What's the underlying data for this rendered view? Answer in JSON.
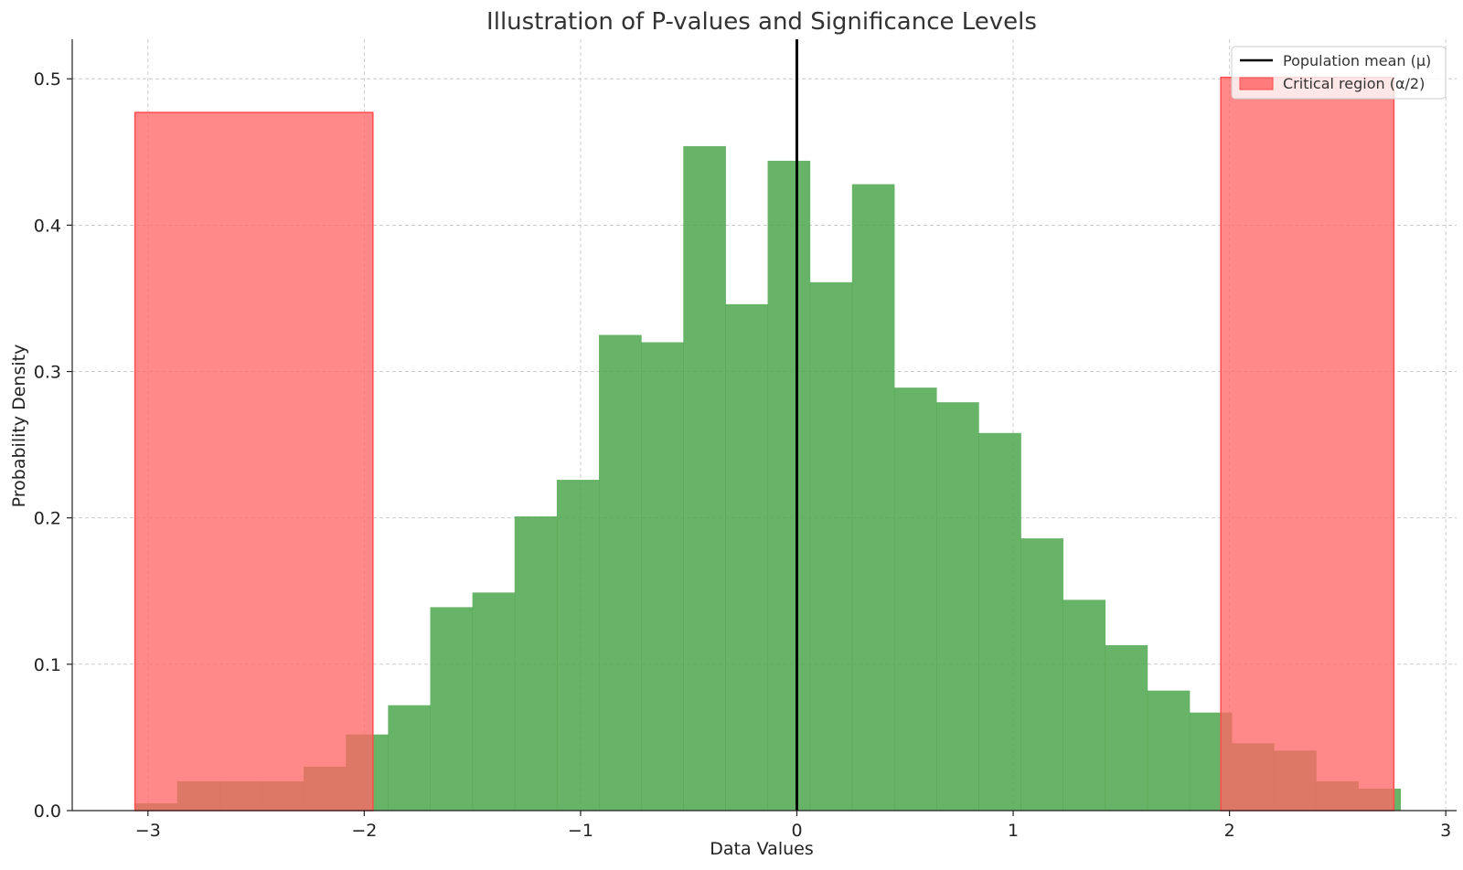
{
  "chart_data": {
    "type": "bar",
    "title": "Illustration of P-values and Significance Levels",
    "xlabel": "Data Values",
    "ylabel": "Probability Density",
    "xlim": [
      -3.35,
      3.05
    ],
    "ylim": [
      0,
      0.527
    ],
    "xticks": [
      -3,
      -2,
      -1,
      0,
      1,
      2,
      3
    ],
    "xtick_labels": [
      "−3",
      "−2",
      "−1",
      "0",
      "1",
      "2",
      "3"
    ],
    "yticks": [
      0.0,
      0.1,
      0.2,
      0.3,
      0.4,
      0.5
    ],
    "ytick_labels": [
      "0.0",
      "0.1",
      "0.2",
      "0.3",
      "0.4",
      "0.5"
    ],
    "grid": true,
    "legend_position": "top-right",
    "histogram": {
      "color": "#4ca64c",
      "opacity": 0.85,
      "bins": [
        {
          "x0": -3.06,
          "x1": -2.865,
          "value": 0.005
        },
        {
          "x0": -2.865,
          "x1": -2.67,
          "value": 0.02
        },
        {
          "x0": -2.67,
          "x1": -2.475,
          "value": 0.02
        },
        {
          "x0": -2.475,
          "x1": -2.28,
          "value": 0.02
        },
        {
          "x0": -2.28,
          "x1": -2.085,
          "value": 0.03
        },
        {
          "x0": -2.085,
          "x1": -1.89,
          "value": 0.052
        },
        {
          "x0": -1.89,
          "x1": -1.695,
          "value": 0.072
        },
        {
          "x0": -1.695,
          "x1": -1.5,
          "value": 0.139
        },
        {
          "x0": -1.5,
          "x1": -1.305,
          "value": 0.149
        },
        {
          "x0": -1.305,
          "x1": -1.11,
          "value": 0.201
        },
        {
          "x0": -1.11,
          "x1": -0.915,
          "value": 0.226
        },
        {
          "x0": -0.915,
          "x1": -0.72,
          "value": 0.325
        },
        {
          "x0": -0.72,
          "x1": -0.525,
          "value": 0.32
        },
        {
          "x0": -0.525,
          "x1": -0.33,
          "value": 0.454
        },
        {
          "x0": -0.33,
          "x1": -0.135,
          "value": 0.346
        },
        {
          "x0": -0.135,
          "x1": 0.06,
          "value": 0.444
        },
        {
          "x0": 0.06,
          "x1": 0.255,
          "value": 0.361
        },
        {
          "x0": 0.255,
          "x1": 0.45,
          "value": 0.428
        },
        {
          "x0": 0.45,
          "x1": 0.645,
          "value": 0.289
        },
        {
          "x0": 0.645,
          "x1": 0.84,
          "value": 0.279
        },
        {
          "x0": 0.84,
          "x1": 1.035,
          "value": 0.258
        },
        {
          "x0": 1.035,
          "x1": 1.23,
          "value": 0.186
        },
        {
          "x0": 1.23,
          "x1": 1.425,
          "value": 0.144
        },
        {
          "x0": 1.425,
          "x1": 1.62,
          "value": 0.113
        },
        {
          "x0": 1.62,
          "x1": 1.815,
          "value": 0.082
        },
        {
          "x0": 1.815,
          "x1": 2.01,
          "value": 0.067
        },
        {
          "x0": 2.01,
          "x1": 2.205,
          "value": 0.046
        },
        {
          "x0": 2.205,
          "x1": 2.4,
          "value": 0.041
        },
        {
          "x0": 2.4,
          "x1": 2.595,
          "value": 0.02
        },
        {
          "x0": 2.595,
          "x1": 2.79,
          "value": 0.015
        }
      ]
    },
    "critical_regions": [
      {
        "x0": -3.06,
        "x1": -1.96,
        "value": 0.477
      },
      {
        "x0": 1.96,
        "x1": 2.76,
        "value": 0.501
      }
    ],
    "critical_color": "#ff6666",
    "critical_opacity": 0.85,
    "mean_line": {
      "x": 0,
      "color": "#000000"
    },
    "legend": [
      {
        "label": "Population mean (μ)",
        "kind": "line",
        "color": "#000000"
      },
      {
        "label": "Critical region (α/2)",
        "kind": "patch",
        "color": "#ff6666"
      }
    ]
  }
}
